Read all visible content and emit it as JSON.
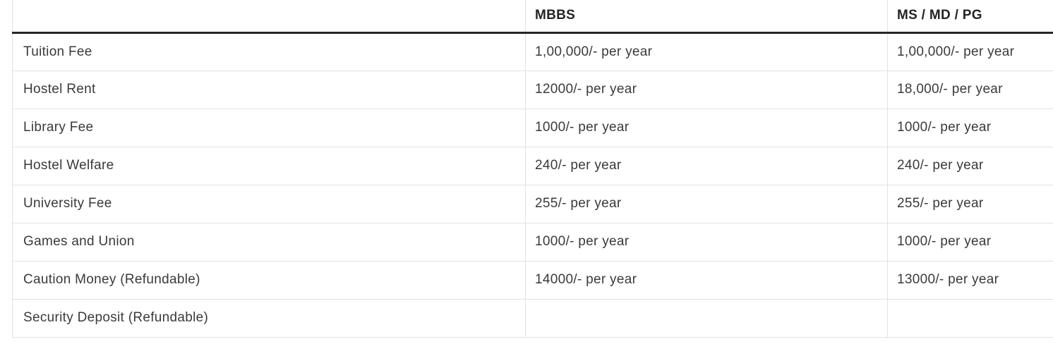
{
  "table": {
    "columns": [
      {
        "label": ""
      },
      {
        "label": "MBBS"
      },
      {
        "label": "MS / MD / PG"
      }
    ],
    "rows": [
      {
        "label": "Tuition Fee",
        "mbbs": "1,00,000/- per year",
        "mspg": "1,00,000/- per year"
      },
      {
        "label": "Hostel Rent",
        "mbbs": "12000/- per year",
        "mspg": "18,000/- per year"
      },
      {
        "label": "Library Fee",
        "mbbs": "1000/- per year",
        "mspg": "1000/- per year"
      },
      {
        "label": "Hostel Welfare",
        "mbbs": "240/- per year",
        "mspg": "240/- per year"
      },
      {
        "label": "University Fee",
        "mbbs": "255/- per year",
        "mspg": "255/- per year"
      },
      {
        "label": "Games and Union",
        "mbbs": "1000/- per year",
        "mspg": "1000/- per year"
      },
      {
        "label": "Caution Money (Refundable)",
        "mbbs": "14000/- per year",
        "mspg": "13000/- per year"
      },
      {
        "label": "Security Deposit (Refundable)",
        "mbbs": "",
        "mspg": ""
      }
    ]
  },
  "colors": {
    "header_text": "#242424",
    "body_text": "#3a3a3a",
    "header_rule": "#262626",
    "grid_line": "#e2e2e2",
    "background": "#ffffff"
  }
}
